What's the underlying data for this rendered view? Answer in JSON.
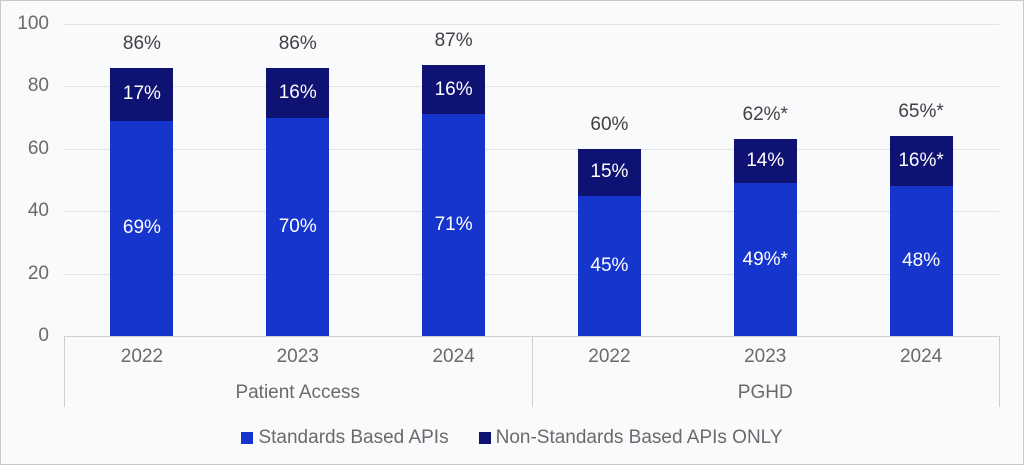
{
  "chart_data": {
    "type": "bar",
    "stacked": true,
    "grid": true,
    "legend_position": "bottom",
    "groups": [
      {
        "label": "Patient Access",
        "categories": [
          "2022",
          "2023",
          "2024"
        ]
      },
      {
        "label": "PGHD",
        "categories": [
          "2022",
          "2023",
          "2024"
        ]
      }
    ],
    "series": [
      {
        "name": "Standards Based APIs",
        "color": "#1635cd",
        "values": [
          69,
          70,
          71,
          45,
          49,
          48
        ],
        "labels": [
          "69%",
          "70%",
          "71%",
          "45%",
          "49%*",
          "48%"
        ]
      },
      {
        "name": "Non-Standards Based APIs ONLY",
        "color": "#0e1273",
        "values": [
          17,
          16,
          16,
          15,
          14,
          16
        ],
        "labels": [
          "17%",
          "16%",
          "16%",
          "15%",
          "14%",
          "16%*"
        ]
      }
    ],
    "totals": [
      "86%",
      "86%",
      "87%",
      "60%",
      "62%*",
      "65%*"
    ],
    "y_axis": {
      "min": 0,
      "max": 100,
      "step": 20,
      "ticks": [
        "0",
        "20",
        "40",
        "60",
        "80",
        "100"
      ]
    },
    "colors": {
      "background": "#f9fafc",
      "frame_border": "#c8c9cb",
      "gridline": "#e3e4e6",
      "axis_line": "#cfd0d2",
      "axis_text": "#696a6c",
      "total_text": "#414144",
      "bar_label_text": "#ffffff"
    }
  }
}
